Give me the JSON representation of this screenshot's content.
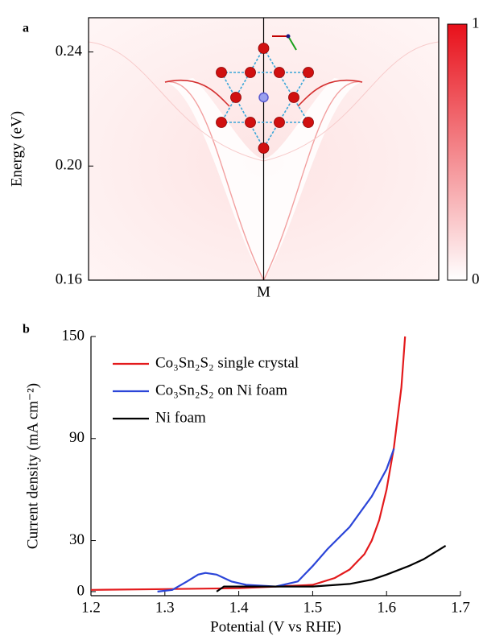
{
  "chart_data": [
    {
      "type": "heatmap",
      "panel_label": "a",
      "y_label": "Energy (eV)",
      "ylim": [
        0.16,
        0.252
      ],
      "yticks": [
        0.16,
        {
          "value": 0.2,
          "label": "0.20"
        },
        0.24
      ],
      "categories": [
        "M"
      ],
      "colorbar": {
        "ticks": [
          0,
          1
        ],
        "colors": [
          "#ffffff",
          "#e8101a"
        ]
      }
    },
    {
      "type": "line",
      "panel_label": "b",
      "x_label": "Potential (V vs RHE)",
      "y_label": "Current density (mA cm⁻²)",
      "xlim": [
        1.2,
        1.7
      ],
      "xticks": [
        1.2,
        1.3,
        1.4,
        1.5,
        1.6,
        1.7
      ],
      "ylim": [
        -2.4,
        150
      ],
      "yticks": [
        0,
        30,
        90,
        150
      ],
      "series": [
        {
          "name": "Co₃Sn₂S₂ single crystal",
          "color": "#e31a1c",
          "x": [
            1.2,
            1.3,
            1.4,
            1.45,
            1.5,
            1.53,
            1.55,
            1.57,
            1.58,
            1.59,
            1.6,
            1.61,
            1.62,
            1.625
          ],
          "values": [
            1,
            1.5,
            2,
            3,
            4,
            8,
            13,
            22,
            30,
            42,
            60,
            85,
            120,
            150
          ]
        },
        {
          "name": "Co₃Sn₂S₂ on Ni foam",
          "color": "#2b45d8",
          "x": [
            1.29,
            1.31,
            1.33,
            1.345,
            1.355,
            1.37,
            1.39,
            1.41,
            1.45,
            1.48,
            1.5,
            1.52,
            1.55,
            1.58,
            1.6,
            1.61
          ],
          "values": [
            0,
            1,
            6,
            10,
            11,
            10,
            6,
            4,
            3,
            6,
            15,
            25,
            38,
            56,
            72,
            84
          ]
        },
        {
          "name": "Ni foam",
          "color": "#000000",
          "x": [
            1.37,
            1.38,
            1.4,
            1.45,
            1.5,
            1.55,
            1.58,
            1.6,
            1.63,
            1.65,
            1.68
          ],
          "values": [
            0,
            3,
            3,
            3,
            3,
            4.5,
            7,
            10,
            15,
            19,
            27
          ]
        }
      ]
    }
  ]
}
